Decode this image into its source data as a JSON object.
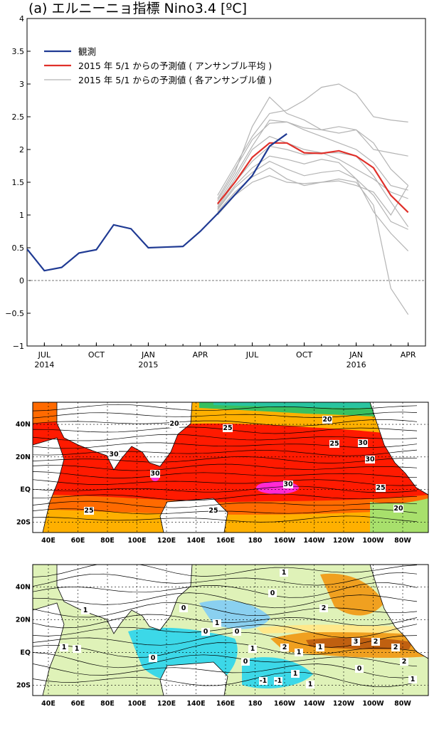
{
  "title": "(a) エルニーニョ指標 Nino3.4 [ºC]",
  "chart_data": {
    "type": "line",
    "ylim": [
      -1,
      4
    ],
    "yticks": [
      -1,
      -0.5,
      0,
      0.5,
      1,
      1.5,
      2,
      2.5,
      3,
      3.5,
      4
    ],
    "ytick_labels": [
      "−1",
      "−0.5",
      "0",
      "0.5",
      "1",
      "1.5",
      "2",
      "2.5",
      "3",
      "3.5",
      "4"
    ],
    "xlim": [
      "2014-06",
      "2016-05"
    ],
    "xticks": [
      {
        "x": "2014-07",
        "label": "JUL",
        "year": "2014"
      },
      {
        "x": "2014-10",
        "label": "OCT",
        "year": ""
      },
      {
        "x": "2015-01",
        "label": "JAN",
        "year": "2015"
      },
      {
        "x": "2015-04",
        "label": "APR",
        "year": ""
      },
      {
        "x": "2015-07",
        "label": "JUL",
        "year": ""
      },
      {
        "x": "2015-10",
        "label": "OCT",
        "year": ""
      },
      {
        "x": "2016-01",
        "label": "JAN",
        "year": "2016"
      },
      {
        "x": "2016-04",
        "label": "APR",
        "year": ""
      }
    ],
    "legend_position": "top-left",
    "observed": {
      "name": "観測",
      "color": "#1f3a93",
      "x": [
        "2014-06",
        "2014-07",
        "2014-08",
        "2014-09",
        "2014-10",
        "2014-11",
        "2014-12",
        "2015-01",
        "2015-02",
        "2015-03",
        "2015-04",
        "2015-05",
        "2015-06",
        "2015-07",
        "2015-08",
        "2015-09"
      ],
      "y": [
        0.48,
        0.15,
        0.2,
        0.42,
        0.47,
        0.85,
        0.79,
        0.5,
        0.51,
        0.52,
        0.75,
        1.02,
        1.31,
        1.6,
        2.05,
        2.24
      ]
    },
    "forecast_mean": {
      "name": "2015 年 5/1 からの予測値 ( アンサンブル平均 )",
      "color": "#e0302a",
      "x": [
        "2015-05",
        "2015-06",
        "2015-07",
        "2015-08",
        "2015-09",
        "2015-10",
        "2015-11",
        "2015-12",
        "2016-01",
        "2016-02",
        "2016-03",
        "2016-04"
      ],
      "y": [
        1.17,
        1.5,
        1.88,
        2.1,
        2.1,
        1.95,
        1.94,
        1.98,
        1.9,
        1.72,
        1.3,
        1.04
      ]
    },
    "forecast_members": {
      "name": "2015 年 5/1 からの予測値 ( 各アンサンブル値 )",
      "color": "#b4b4b4",
      "x": [
        "2015-05",
        "2015-06",
        "2015-07",
        "2015-08",
        "2015-09",
        "2015-10",
        "2015-11",
        "2015-12",
        "2016-01",
        "2016-02",
        "2016-03",
        "2016-04"
      ],
      "members": [
        [
          1.3,
          1.75,
          2.2,
          2.55,
          2.6,
          2.75,
          2.95,
          3.0,
          2.85,
          2.5,
          2.45,
          2.42
        ],
        [
          1.25,
          1.7,
          2.15,
          2.4,
          2.42,
          2.33,
          2.3,
          2.35,
          2.3,
          2.0,
          1.95,
          1.9
        ],
        [
          1.22,
          1.65,
          2.35,
          2.8,
          2.55,
          2.45,
          2.3,
          2.25,
          2.3,
          2.1,
          1.7,
          1.45
        ],
        [
          1.18,
          1.6,
          2.05,
          2.45,
          2.42,
          2.3,
          2.2,
          2.1,
          2.0,
          1.8,
          1.45,
          1.38
        ],
        [
          1.15,
          1.55,
          2.0,
          2.2,
          2.1,
          2.0,
          1.95,
          1.85,
          1.7,
          1.55,
          1.35,
          1.25
        ],
        [
          1.12,
          1.5,
          1.82,
          2.05,
          2.0,
          1.92,
          1.95,
          1.95,
          1.9,
          1.6,
          1.2,
          0.82
        ],
        [
          1.1,
          1.45,
          1.72,
          1.9,
          1.85,
          1.78,
          1.85,
          1.8,
          1.55,
          1.05,
          0.72,
          0.45
        ],
        [
          1.08,
          1.42,
          1.65,
          1.82,
          1.7,
          1.6,
          1.65,
          1.68,
          1.55,
          1.3,
          0.9,
          0.78
        ],
        [
          1.05,
          1.35,
          1.58,
          1.72,
          1.55,
          1.45,
          1.5,
          1.55,
          1.5,
          1.15,
          -0.12,
          -0.52
        ],
        [
          1.0,
          1.3,
          1.5,
          1.6,
          1.5,
          1.48,
          1.5,
          1.52,
          1.45,
          1.35,
          1.0,
          1.45
        ]
      ]
    }
  },
  "maps": [
    {
      "y_labels": [
        "40N",
        "20N",
        "EQ",
        "20S"
      ],
      "x_labels": [
        "40E",
        "60E",
        "80E",
        "100E",
        "120E",
        "140E",
        "160E",
        "180",
        "160W",
        "140W",
        "120W",
        "100W",
        "80W"
      ],
      "contour_labels": [
        "20",
        "25",
        "20",
        "25",
        "30",
        "30",
        "30",
        "30",
        "30",
        "25",
        "25",
        "25",
        "20"
      ]
    },
    {
      "y_labels": [
        "40N",
        "20N",
        "EQ",
        "20S"
      ],
      "x_labels": [
        "40E",
        "60E",
        "80E",
        "100E",
        "120E",
        "140E",
        "160E",
        "180",
        "160W",
        "140W",
        "120W",
        "100W",
        "80W"
      ],
      "contour_labels": [
        "1",
        "1",
        "0",
        "0",
        "1",
        "0",
        "0",
        "2",
        "1",
        "3",
        "2",
        "2",
        "2",
        "1",
        "1",
        "2",
        "0",
        "1",
        "1",
        "0",
        "-1",
        "-1",
        "1",
        "1",
        "1",
        "0"
      ]
    }
  ],
  "colors": {
    "warm_red": "#ff1a00",
    "orange": "#ff6a00",
    "deep_orange": "#f25c0a",
    "yellow_orange": "#ffb000",
    "yellow": "#ffe040",
    "light_green": "#a8e06c",
    "green": "#38c060",
    "teal": "#29c4a0",
    "cyan": "#50d8e8",
    "magenta": "#ff2ad4",
    "pale_green": "#dff2b8",
    "anom_orange": "#f0a020",
    "anom_dark": "#c06010",
    "anom_yellow": "#ffe88a",
    "anom_cyan": "#3cd8e8",
    "anom_blue": "#8ad0f0",
    "land": "#ffffff"
  }
}
